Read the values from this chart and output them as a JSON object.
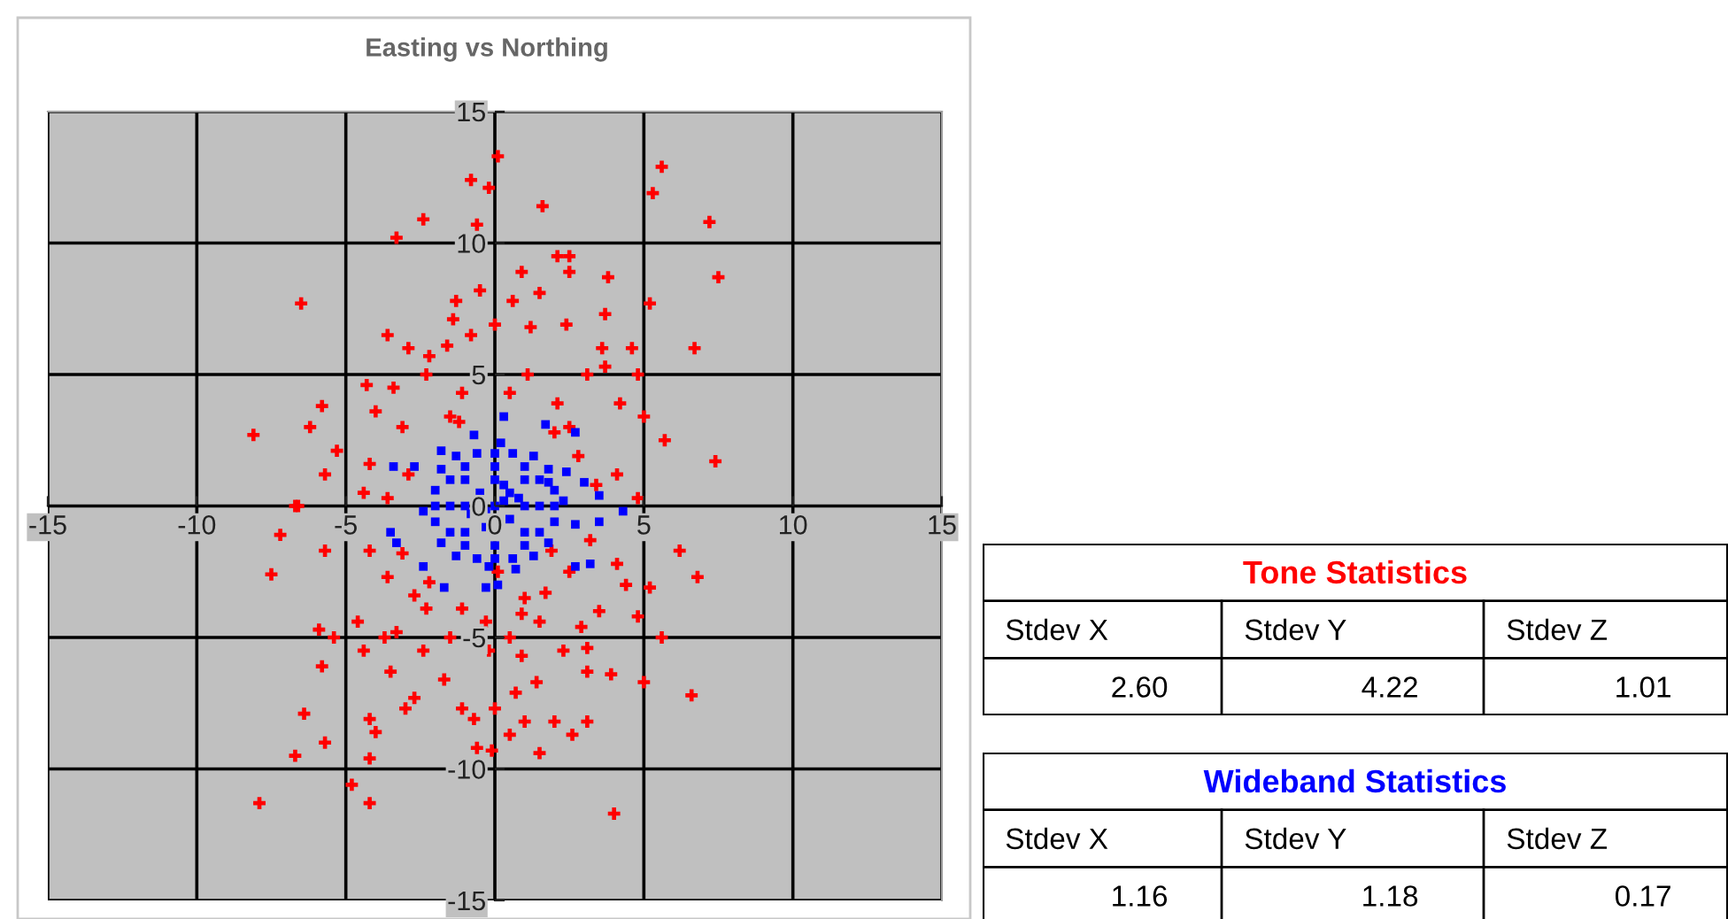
{
  "chart_data": [
    {
      "type": "scatter",
      "title": "Easting vs Northing",
      "xlim": [
        -15,
        15
      ],
      "ylim": [
        -15,
        15
      ],
      "xticks": [
        -15,
        -10,
        -5,
        0,
        5,
        10,
        15
      ],
      "yticks": [
        -15,
        -10,
        -5,
        0,
        5,
        10,
        15
      ],
      "grid": true,
      "legend": false,
      "series": [
        {
          "color": "#ff0000",
          "marker": "cross",
          "x": [
            0.1,
            5.6,
            -0.8,
            -0.2,
            5.3,
            1.6,
            -2.4,
            -0.6,
            7.2,
            -3.3,
            2.1,
            2.5,
            2.5,
            0.9,
            7.5,
            3.8,
            1.5,
            -0.5,
            -6.5,
            -1.3,
            5.2,
            3.7,
            0.6,
            -1.4,
            0,
            1.2,
            2.4,
            -3.6,
            -0.8,
            6.7,
            -1.6,
            -2.9,
            -2.2,
            3.6,
            4.6,
            -5.8,
            -6.2,
            -8.1,
            -5.3,
            -5.7,
            5.7,
            7.4,
            -4.3,
            -3.4,
            -2.3,
            1.1,
            3.1,
            4.8,
            3.7,
            -1.1,
            0.5,
            2.1,
            4.2,
            -4.0,
            -3.1,
            5.0,
            4.1,
            -4.2,
            -6.6,
            -4.4,
            4.8,
            2.5,
            -1.5,
            -6.7,
            -7.2,
            -7.5,
            -5.7,
            6.2,
            6.8,
            5.2,
            4.8,
            5.6,
            5.0,
            6.6,
            3.9,
            3.1,
            -5.9,
            -5.4,
            -5.8,
            -6.4,
            -5.7,
            -6.7,
            -7.9,
            -4.8,
            -4.2,
            -4.2,
            -4.0,
            -4.2,
            -3.0,
            -2.7,
            -1.7,
            -1.1,
            -0.7,
            -0.6,
            -0.1,
            0,
            0.5,
            1.0,
            1.5,
            2.0,
            2.6,
            3.1,
            4.0,
            0.7,
            1.4,
            2.3,
            3.1,
            -3.5,
            -4.4,
            -3.7,
            -2.4,
            -1.5,
            -0.2,
            0.5,
            0.9,
            1.5,
            2.9,
            3.5,
            4.4,
            4.1,
            2.5,
            1.7,
            0.9,
            -0.3,
            -1.1,
            -2.3,
            -3.3,
            -4.6,
            -3.6,
            -4.2,
            -2.7,
            0.1,
            1.9,
            2.8,
            -2.9,
            -3.1,
            3.2,
            2.0,
            -2.2,
            1.0,
            -1.2,
            3.4,
            -3.6
          ],
          "values": [
            13.3,
            12.9,
            12.4,
            12.1,
            11.9,
            11.4,
            10.9,
            10.7,
            10.8,
            10.2,
            9.5,
            9.5,
            8.9,
            8.9,
            8.7,
            8.7,
            8.1,
            8.2,
            7.7,
            7.8,
            7.7,
            7.3,
            7.8,
            7.1,
            6.9,
            6.8,
            6.9,
            6.5,
            6.5,
            6.0,
            6.1,
            6.0,
            5.7,
            6.0,
            6.0,
            3.8,
            3.0,
            2.7,
            2.1,
            1.2,
            2.5,
            1.7,
            4.6,
            4.5,
            5.0,
            5.0,
            5.0,
            5.0,
            5.3,
            4.3,
            4.3,
            3.9,
            3.9,
            3.6,
            3.0,
            3.4,
            1.2,
            1.6,
            0.0,
            0.5,
            0.3,
            3.0,
            3.4,
            0,
            -1.1,
            -2.6,
            -1.7,
            -1.7,
            -2.7,
            -3.1,
            -4.2,
            -5.0,
            -6.7,
            -7.2,
            -6.4,
            -6.3,
            -4.7,
            -5.0,
            -6.1,
            -7.9,
            -9.0,
            -9.5,
            -11.3,
            -10.6,
            -11.3,
            -9.6,
            -8.6,
            -8.1,
            -7.7,
            -7.3,
            -6.6,
            -7.7,
            -8.1,
            -9.2,
            -9.3,
            -7.7,
            -8.7,
            -8.2,
            -9.4,
            -8.2,
            -8.7,
            -8.2,
            -11.7,
            -7.1,
            -6.7,
            -5.5,
            -5.4,
            -6.3,
            -5.5,
            -5.0,
            -5.5,
            -5.0,
            -5.5,
            -5.0,
            -5.7,
            -4.4,
            -4.6,
            -4.0,
            -3.0,
            -2.2,
            -2.5,
            -3.3,
            -4.1,
            -4.4,
            -3.9,
            -3.9,
            -4.8,
            -4.4,
            -2.7,
            -1.7,
            -3.4,
            -2.5,
            -1.7,
            1.9,
            1.2,
            -1.8,
            -1.3,
            2.8,
            -2.9,
            -3.5,
            3.2,
            0.8,
            0.3
          ]
        },
        {
          "color": "#0000ff",
          "marker": "square",
          "x": [
            -3.4,
            -2.7,
            -1.8,
            -0.7,
            0.3,
            1.7,
            2.7,
            3.0,
            3.5,
            4.3,
            3.5,
            2.7,
            3.2,
            2.7,
            -3.5,
            -3.3,
            -2.4,
            -1.7,
            -0.3,
            0.1,
            0.7,
            1.8,
            2.4,
            0,
            0.5,
            -0.5,
            0.5,
            1,
            -1,
            0,
            1,
            -1,
            1,
            -1,
            1.5,
            -1.5,
            0,
            0,
            1.5,
            -1.5,
            1.5,
            -1.5,
            1,
            -1,
            1,
            -1,
            2,
            -2,
            0,
            0,
            2,
            -2,
            2,
            -2,
            0.6,
            -0.6,
            0.6,
            -0.6,
            1.8,
            -1.8,
            1.8,
            -1.8,
            1.3,
            -1.3,
            1.3,
            -1.3,
            2.3,
            -2.4,
            0.2,
            -0.2,
            0.3,
            -0.3,
            0.8,
            -0.8,
            0.3,
            -0.3
          ],
          "values": [
            1.5,
            1.5,
            2.1,
            2.7,
            3.4,
            3.1,
            2.8,
            0.9,
            0.4,
            -0.2,
            -0.6,
            -0.7,
            -2.2,
            -2.3,
            -1.0,
            -1.4,
            -2.3,
            -3.1,
            -3.1,
            -3.0,
            -2.4,
            0.9,
            1.3,
            0,
            0.5,
            0.5,
            -0.5,
            0,
            0,
            1,
            1,
            1,
            -1,
            -1,
            0,
            0,
            1.5,
            -1.5,
            1,
            1,
            -1,
            -1,
            1.5,
            1.5,
            -1.5,
            -1.5,
            0,
            0,
            2,
            -2,
            0.6,
            0.6,
            -0.6,
            -0.6,
            2,
            2,
            -2,
            -2,
            1.4,
            1.4,
            -1.4,
            -1.4,
            1.9,
            1.9,
            -1.9,
            -1.9,
            0.2,
            -0.2,
            2.4,
            -2.3,
            0.2,
            -0.2,
            0.3,
            -0.3,
            0.8,
            -0.8
          ]
        }
      ]
    },
    {
      "type": "other",
      "title": "Tone Statistics",
      "color": "#ff0000",
      "categories": [
        "Stdev X",
        "Stdev Y",
        "Stdev Z"
      ],
      "values": [
        2.6,
        4.22,
        1.01
      ],
      "value_labels": [
        "2.60",
        "4.22",
        "1.01"
      ]
    },
    {
      "type": "other",
      "title": "Wideband Statistics",
      "color": "#0000ff",
      "categories": [
        "Stdev X",
        "Stdev Y",
        "Stdev Z"
      ],
      "values": [
        1.16,
        1.18,
        0.17
      ],
      "value_labels": [
        "1.16",
        "1.18",
        "0.17"
      ]
    }
  ]
}
